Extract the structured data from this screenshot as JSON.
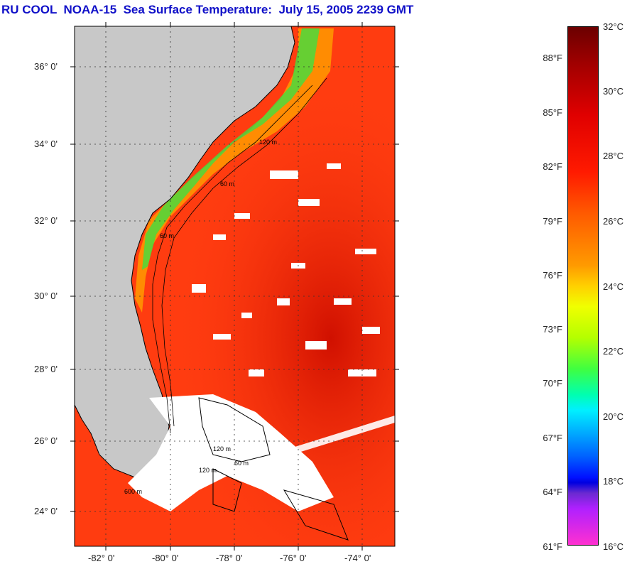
{
  "title": "RU COOL  NOAA-15  Sea Surface Temperature:  July 15, 2005 2239 GMT",
  "map": {
    "lat_labels": [
      "36° 0'",
      "34° 0'",
      "32° 0'",
      "30° 0'",
      "28° 0'",
      "26° 0'",
      "24° 0'"
    ],
    "lon_labels": [
      "-82° 0'",
      "-80° 0'",
      "-78° 0'",
      "-76° 0'",
      "-74° 0'"
    ],
    "contour_labels": [
      "120 m",
      "60 m",
      "120 m",
      "60 m",
      "120 m",
      "60 m",
      "600 m"
    ],
    "colors": {
      "land": "#c8c8c8",
      "ocean_warm": "#ff3c10",
      "cloud": "#ffffff",
      "frame": "#000000"
    }
  },
  "colorbar": {
    "celsius_labels": [
      "32°C",
      "30°C",
      "28°C",
      "26°C",
      "24°C",
      "22°C",
      "20°C",
      "18°C",
      "16°C"
    ],
    "fahrenheit_labels": [
      "88°F",
      "85°F",
      "82°F",
      "79°F",
      "76°F",
      "73°F",
      "70°F",
      "67°F",
      "64°F",
      "61°F"
    ],
    "range_c": [
      16,
      32
    ],
    "range_f": [
      61,
      89.6
    ]
  }
}
